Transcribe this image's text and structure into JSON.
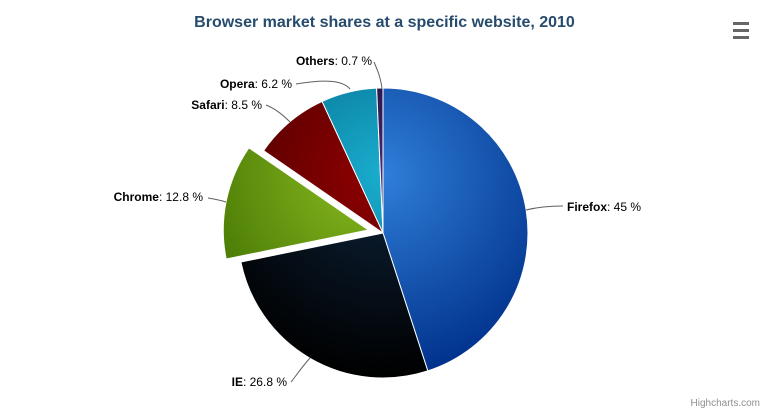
{
  "header": {
    "title": "Browser market shares at a specific website, 2010"
  },
  "chart_data": {
    "type": "pie",
    "title": "Browser market shares at a specific website, 2010",
    "label_format": "{name}: {value} %",
    "legend": false,
    "total": 100,
    "slices": [
      {
        "name": "Firefox",
        "value": 45,
        "label": "Firefox: 45 %",
        "color": "#2f7ed8",
        "sliced": false
      },
      {
        "name": "IE",
        "value": 26.8,
        "label": "IE: 26.8 %",
        "color": "#0d233a",
        "sliced": false
      },
      {
        "name": "Chrome",
        "value": 12.8,
        "label": "Chrome: 12.8 %",
        "color": "#8bbc21",
        "sliced": true
      },
      {
        "name": "Safari",
        "value": 8.5,
        "label": "Safari: 8.5 %",
        "color": "#910000",
        "sliced": false
      },
      {
        "name": "Opera",
        "value": 6.2,
        "label": "Opera: 6.2 %",
        "color": "#1aadce",
        "sliced": false
      },
      {
        "name": "Others",
        "value": 0.7,
        "label": "Others: 0.7 %",
        "color": "#492970",
        "sliced": false
      }
    ]
  },
  "export_menu": {
    "icon": "hamburger-icon"
  },
  "credits": {
    "label": "Highcharts.com"
  },
  "colors": {
    "background": "#ffffff",
    "title_text": "#274b6d",
    "label_text": "#000000",
    "connector": "#606060",
    "slice_border": "#ffffff",
    "credits_text": "#909090",
    "menu_icon": "#666666"
  }
}
